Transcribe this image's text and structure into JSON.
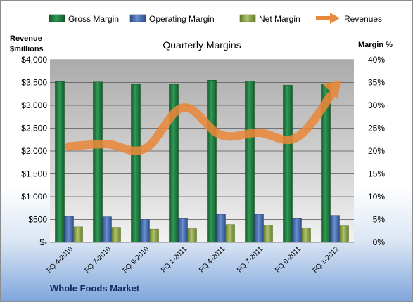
{
  "chart_data": {
    "type": "bar",
    "title": "Quarterly Margins",
    "ylabel_left": [
      "Revenue",
      "$millions"
    ],
    "ylabel_right": "Margin %",
    "footer": "Whole Foods Market",
    "categories": [
      "FQ 4-2010",
      "FQ 7-2010",
      "FQ 9-2010",
      "FQ 1-2011",
      "FQ 4-2011",
      "FQ 7-2011",
      "FQ 9-2011",
      "FQ 1-2012"
    ],
    "left_ticks": [
      "$-",
      "$500",
      "$1,000",
      "$1,500",
      "$2,000",
      "$2,500",
      "$3,000",
      "$3,500",
      "$4,000"
    ],
    "right_ticks": [
      "0%",
      "5%",
      "10%",
      "15%",
      "20%",
      "25%",
      "30%",
      "35%",
      "40%"
    ],
    "ylim_left": [
      0,
      4000
    ],
    "ylim_right": [
      0,
      40
    ],
    "grid": true,
    "legend_position": "top",
    "series": [
      {
        "name": "Gross Margin",
        "type": "bar",
        "axis": "right",
        "color": "#1f7a3c",
        "values": [
          35.2,
          35.1,
          34.6,
          34.6,
          35.5,
          35.3,
          34.4,
          34.7
        ]
      },
      {
        "name": "Operating Margin",
        "type": "bar",
        "axis": "right",
        "color": "#4a6fae",
        "values": [
          5.7,
          5.6,
          5.0,
          5.2,
          6.1,
          6.1,
          5.2,
          5.9
        ]
      },
      {
        "name": "Net Margin",
        "type": "bar",
        "axis": "right",
        "color": "#8fa848",
        "values": [
          3.4,
          3.3,
          2.9,
          3.0,
          3.9,
          3.8,
          3.2,
          3.6
        ]
      },
      {
        "name": "Revenues",
        "type": "line",
        "axis": "left",
        "color": "#e8883a",
        "values": [
          2100,
          2150,
          2050,
          2950,
          2350,
          2400,
          2300,
          3350
        ]
      }
    ]
  }
}
